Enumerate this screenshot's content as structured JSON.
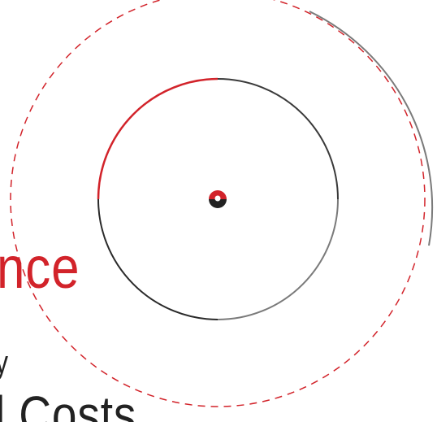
{
  "text": {
    "red_fragment": "nce",
    "small_fragment": "y",
    "dark_fragment": "l Costs"
  },
  "colors": {
    "accent_red": "#d2232a",
    "dark_text": "#222222",
    "ring_gray": "#7a7a7a",
    "ring_dark": "#2a2a2a"
  }
}
